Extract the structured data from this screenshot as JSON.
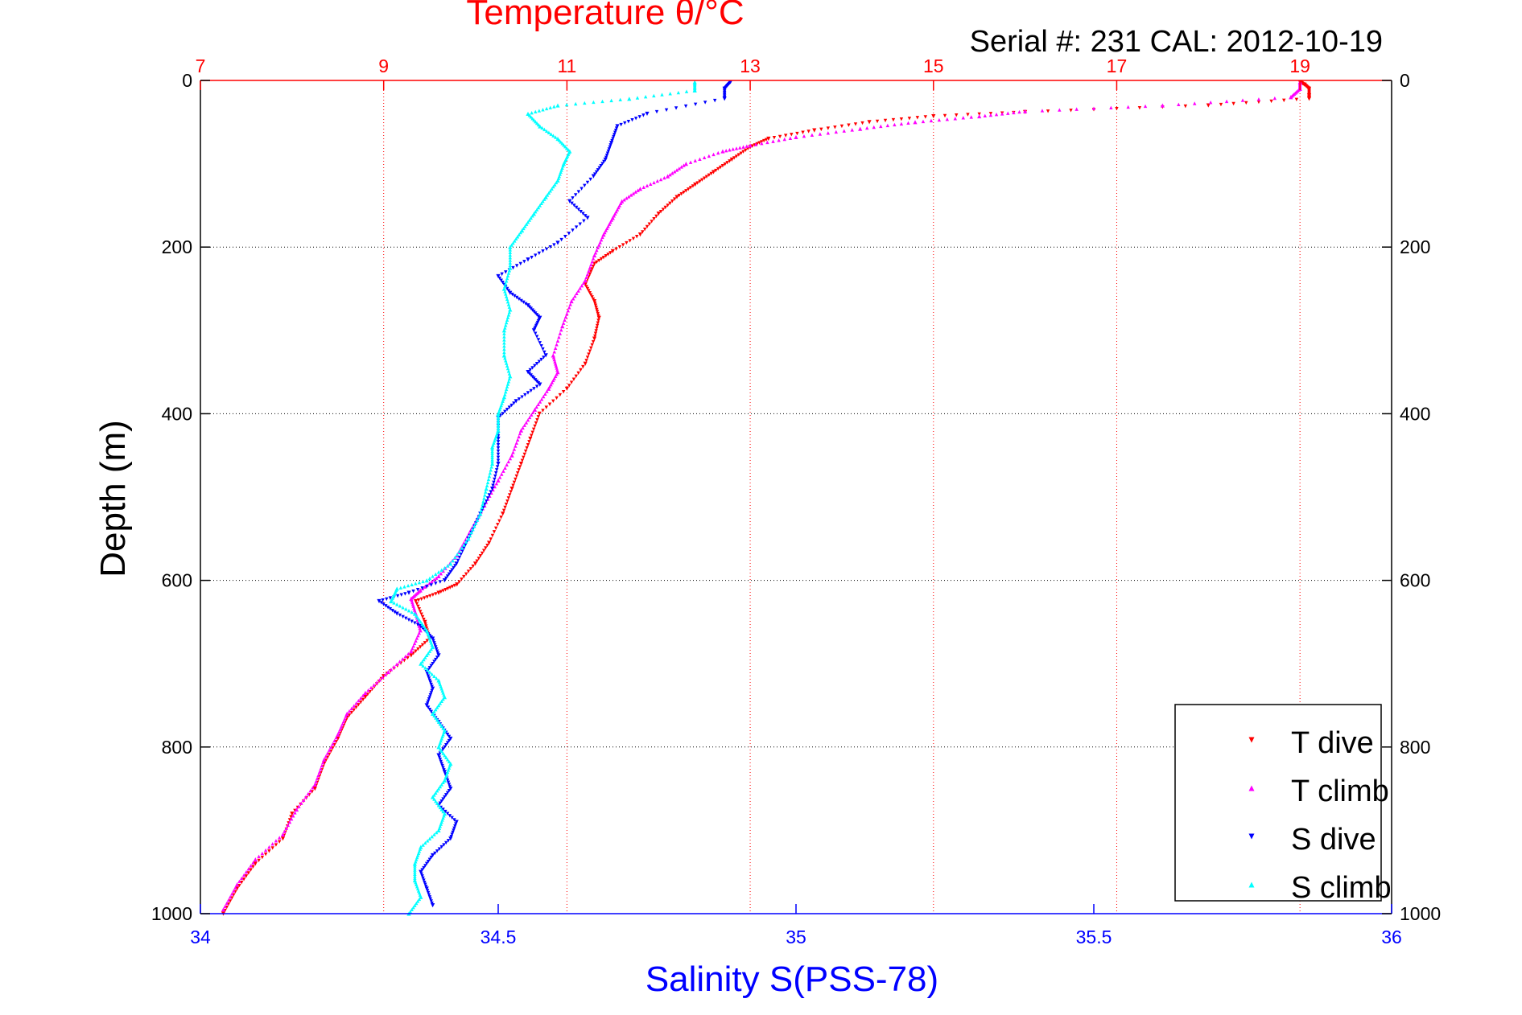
{
  "chart_data": {
    "type": "scatter",
    "title": "Temperature θ/°C",
    "subtitle": "Serial #: 231  CAL: 2012-10-19",
    "ylabel": "Depth (m)",
    "xlabel": "Salinity S(PSS-78)",
    "y_axis": {
      "range": [
        0,
        1000
      ],
      "reversed": true,
      "ticks": [
        "0",
        "200",
        "400",
        "600",
        "800",
        "1000"
      ]
    },
    "x_bottom": {
      "label": "Salinity S(PSS-78)",
      "range": [
        34,
        36
      ],
      "ticks": [
        "34",
        "34.5",
        "35",
        "35.5",
        "36"
      ]
    },
    "x_top": {
      "label": "Temperature θ/°C",
      "range": [
        7,
        20
      ],
      "ticks": [
        "7",
        "9",
        "11",
        "13",
        "15",
        "17",
        "19"
      ]
    },
    "grid": {
      "vertical": "top-axis (red dotted)",
      "horizontal": "depth ticks (black dotted)"
    },
    "legend_position": "bottom-right",
    "series": [
      {
        "name": "T dive",
        "axis": "top",
        "color": "#ff0000",
        "marker": "triangle-down",
        "points": [
          [
            19.0,
            2
          ],
          [
            19.05,
            5
          ],
          [
            19.1,
            10
          ],
          [
            19.1,
            18
          ],
          [
            19.1,
            22
          ],
          [
            18.0,
            30
          ],
          [
            16.0,
            38
          ],
          [
            15.0,
            43
          ],
          [
            14.3,
            50
          ],
          [
            13.7,
            60
          ],
          [
            13.2,
            70
          ],
          [
            13.0,
            80
          ],
          [
            12.8,
            95
          ],
          [
            12.6,
            110
          ],
          [
            12.4,
            125
          ],
          [
            12.2,
            140
          ],
          [
            12.0,
            160
          ],
          [
            11.8,
            185
          ],
          [
            11.5,
            205
          ],
          [
            11.3,
            220
          ],
          [
            11.2,
            245
          ],
          [
            11.3,
            265
          ],
          [
            11.35,
            285
          ],
          [
            11.3,
            310
          ],
          [
            11.2,
            340
          ],
          [
            11.0,
            370
          ],
          [
            10.7,
            400
          ],
          [
            10.6,
            430
          ],
          [
            10.5,
            460
          ],
          [
            10.4,
            490
          ],
          [
            10.3,
            520
          ],
          [
            10.15,
            555
          ],
          [
            10.0,
            580
          ],
          [
            9.8,
            605
          ],
          [
            9.6,
            615
          ],
          [
            9.35,
            625
          ],
          [
            9.45,
            650
          ],
          [
            9.5,
            670
          ],
          [
            9.3,
            690
          ],
          [
            9.0,
            715
          ],
          [
            8.8,
            740
          ],
          [
            8.6,
            765
          ],
          [
            8.5,
            790
          ],
          [
            8.35,
            820
          ],
          [
            8.25,
            850
          ],
          [
            8.0,
            880
          ],
          [
            7.9,
            910
          ],
          [
            7.6,
            940
          ],
          [
            7.4,
            970
          ],
          [
            7.25,
            1000
          ]
        ]
      },
      {
        "name": "T climb",
        "axis": "top",
        "color": "#ff00ff",
        "marker": "triangle-up",
        "points": [
          [
            19.0,
            2
          ],
          [
            19.0,
            10
          ],
          [
            18.9,
            20
          ],
          [
            17.5,
            30
          ],
          [
            16.0,
            37
          ],
          [
            15.5,
            43
          ],
          [
            14.8,
            50
          ],
          [
            14.2,
            58
          ],
          [
            13.5,
            68
          ],
          [
            13.0,
            78
          ],
          [
            12.7,
            85
          ],
          [
            12.3,
            100
          ],
          [
            12.1,
            115
          ],
          [
            11.8,
            130
          ],
          [
            11.6,
            145
          ],
          [
            11.5,
            165
          ],
          [
            11.4,
            185
          ],
          [
            11.3,
            210
          ],
          [
            11.2,
            240
          ],
          [
            11.05,
            265
          ],
          [
            10.95,
            295
          ],
          [
            10.85,
            330
          ],
          [
            10.9,
            350
          ],
          [
            10.8,
            370
          ],
          [
            10.65,
            395
          ],
          [
            10.5,
            420
          ],
          [
            10.4,
            450
          ],
          [
            10.25,
            480
          ],
          [
            10.1,
            510
          ],
          [
            9.95,
            540
          ],
          [
            9.8,
            570
          ],
          [
            9.6,
            595
          ],
          [
            9.4,
            612
          ],
          [
            9.3,
            622
          ],
          [
            9.35,
            640
          ],
          [
            9.4,
            660
          ],
          [
            9.3,
            685
          ],
          [
            9.05,
            710
          ],
          [
            8.8,
            735
          ],
          [
            8.6,
            760
          ],
          [
            8.5,
            785
          ],
          [
            8.35,
            815
          ],
          [
            8.25,
            845
          ],
          [
            8.05,
            875
          ],
          [
            7.9,
            905
          ],
          [
            7.6,
            935
          ],
          [
            7.4,
            965
          ],
          [
            7.25,
            995
          ]
        ]
      },
      {
        "name": "S dive",
        "axis": "bottom",
        "color": "#0000ff",
        "marker": "triangle-down",
        "points": [
          [
            34.89,
            2
          ],
          [
            34.88,
            10
          ],
          [
            34.88,
            22
          ],
          [
            34.75,
            40
          ],
          [
            34.7,
            55
          ],
          [
            34.69,
            75
          ],
          [
            34.68,
            95
          ],
          [
            34.66,
            115
          ],
          [
            34.62,
            145
          ],
          [
            34.65,
            165
          ],
          [
            34.6,
            195
          ],
          [
            34.55,
            215
          ],
          [
            34.5,
            235
          ],
          [
            34.52,
            255
          ],
          [
            34.55,
            270
          ],
          [
            34.57,
            285
          ],
          [
            34.56,
            300
          ],
          [
            34.58,
            330
          ],
          [
            34.55,
            350
          ],
          [
            34.57,
            365
          ],
          [
            34.53,
            385
          ],
          [
            34.5,
            405
          ],
          [
            34.5,
            430
          ],
          [
            34.5,
            460
          ],
          [
            34.49,
            490
          ],
          [
            34.47,
            520
          ],
          [
            34.45,
            550
          ],
          [
            34.43,
            580
          ],
          [
            34.41,
            600
          ],
          [
            34.35,
            615
          ],
          [
            34.3,
            625
          ],
          [
            34.33,
            640
          ],
          [
            34.37,
            655
          ],
          [
            34.39,
            670
          ],
          [
            34.4,
            690
          ],
          [
            34.38,
            710
          ],
          [
            34.39,
            730
          ],
          [
            34.38,
            750
          ],
          [
            34.4,
            770
          ],
          [
            34.42,
            790
          ],
          [
            34.4,
            810
          ],
          [
            34.41,
            830
          ],
          [
            34.42,
            850
          ],
          [
            34.4,
            870
          ],
          [
            34.43,
            890
          ],
          [
            34.42,
            910
          ],
          [
            34.39,
            930
          ],
          [
            34.37,
            950
          ],
          [
            34.38,
            970
          ],
          [
            34.39,
            990
          ]
        ]
      },
      {
        "name": "S climb",
        "axis": "bottom",
        "color": "#00ffff",
        "marker": "triangle-up",
        "points": [
          [
            34.83,
            2
          ],
          [
            34.83,
            12
          ],
          [
            34.72,
            22
          ],
          [
            34.6,
            30
          ],
          [
            34.55,
            40
          ],
          [
            34.57,
            55
          ],
          [
            34.6,
            70
          ],
          [
            34.62,
            85
          ],
          [
            34.61,
            100
          ],
          [
            34.6,
            120
          ],
          [
            34.58,
            140
          ],
          [
            34.56,
            160
          ],
          [
            34.54,
            180
          ],
          [
            34.52,
            200
          ],
          [
            34.52,
            225
          ],
          [
            34.51,
            250
          ],
          [
            34.52,
            275
          ],
          [
            34.51,
            300
          ],
          [
            34.51,
            330
          ],
          [
            34.52,
            355
          ],
          [
            34.51,
            380
          ],
          [
            34.5,
            400
          ],
          [
            34.5,
            420
          ],
          [
            34.49,
            440
          ],
          [
            34.49,
            460
          ],
          [
            34.48,
            490
          ],
          [
            34.47,
            520
          ],
          [
            34.45,
            550
          ],
          [
            34.42,
            580
          ],
          [
            34.38,
            600
          ],
          [
            34.33,
            610
          ],
          [
            34.32,
            625
          ],
          [
            34.36,
            640
          ],
          [
            34.38,
            660
          ],
          [
            34.39,
            680
          ],
          [
            34.37,
            700
          ],
          [
            34.4,
            720
          ],
          [
            34.41,
            740
          ],
          [
            34.39,
            760
          ],
          [
            34.41,
            780
          ],
          [
            34.4,
            800
          ],
          [
            34.42,
            820
          ],
          [
            34.41,
            840
          ],
          [
            34.39,
            860
          ],
          [
            34.41,
            880
          ],
          [
            34.4,
            900
          ],
          [
            34.37,
            920
          ],
          [
            34.36,
            940
          ],
          [
            34.36,
            960
          ],
          [
            34.37,
            980
          ],
          [
            34.35,
            1000
          ]
        ]
      }
    ]
  }
}
